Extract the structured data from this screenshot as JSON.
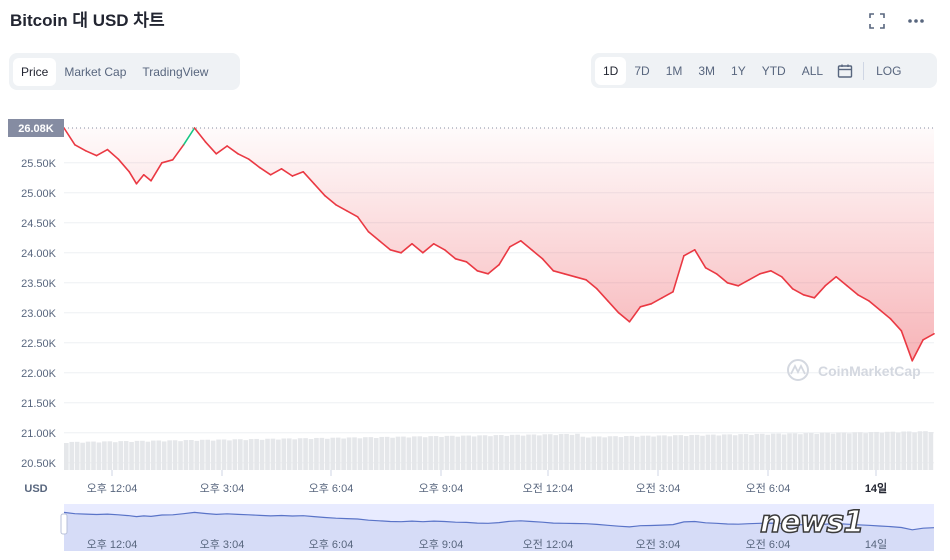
{
  "page": {
    "title": "Bitcoin 대 USD 차트",
    "expand_icon": "expand-icon",
    "more_icon": "more-icon"
  },
  "tabs_left": [
    {
      "label": "Price",
      "active": true
    },
    {
      "label": "Market Cap",
      "active": false
    },
    {
      "label": "TradingView",
      "active": false
    }
  ],
  "range_tabs": [
    {
      "label": "1D",
      "active": true
    },
    {
      "label": "7D",
      "active": false
    },
    {
      "label": "1M",
      "active": false
    },
    {
      "label": "3M",
      "active": false
    },
    {
      "label": "1Y",
      "active": false
    },
    {
      "label": "YTD",
      "active": false
    },
    {
      "label": "ALL",
      "active": false
    }
  ],
  "calendar_icon": "calendar-icon",
  "log_label": "LOG",
  "watermarks": {
    "coinmarketcap": "CoinMarketCap",
    "news": "news1"
  },
  "colors": {
    "line_down": "#ea3943",
    "line_up": "#16c784",
    "volume_bar": "#e5e7ea",
    "current_label_bg": "#858ca2",
    "navigator_fill": "#e8ebff",
    "navigator_line": "#5a74c8"
  },
  "chart_data": {
    "type": "line",
    "title": "Bitcoin 대 USD 차트",
    "currency_label": "USD",
    "current_value_label": "26.08K",
    "y_ticks": [
      "25.50K",
      "25.00K",
      "24.50K",
      "24.00K",
      "23.50K",
      "23.00K",
      "22.50K",
      "22.00K",
      "21.50K",
      "21.00K",
      "20.50K"
    ],
    "ylim": [
      20380,
      26180
    ],
    "x_ticks": [
      "오후 12:04",
      "오후 3:04",
      "오후 6:04",
      "오후 9:04",
      "오전 12:04",
      "오전 3:04",
      "오전 6:04",
      "14일"
    ],
    "navigator_ticks": [
      "오후 12:04",
      "오후 3:04",
      "오후 6:04",
      "오후 9:04",
      "오전 12:04",
      "오전 3:04",
      "오전 6:04",
      "14일"
    ],
    "grid": true,
    "series": [
      {
        "x": [
          0,
          0.3,
          0.6,
          0.9,
          1.2,
          1.5,
          1.8,
          2.0,
          2.2,
          2.4,
          2.7,
          3.0,
          3.3,
          3.6,
          3.9,
          4.2,
          4.5,
          4.8,
          5.1,
          5.4,
          5.7,
          6.0,
          6.3,
          6.6,
          6.9,
          7.2,
          7.5,
          7.8,
          8.1,
          8.4,
          8.7,
          9.0,
          9.3,
          9.6,
          9.9,
          10.2,
          10.5,
          10.8,
          11.1,
          11.4,
          11.7,
          12.0,
          12.3,
          12.6,
          12.9,
          13.2,
          13.5,
          13.8,
          14.1,
          14.4,
          14.7,
          15.0,
          15.3,
          15.6,
          15.9,
          16.2,
          16.5,
          16.8,
          17.1,
          17.4,
          17.7,
          18.0,
          18.3,
          18.6,
          18.9,
          19.2,
          19.5,
          19.8,
          20.1,
          20.4,
          20.7,
          21.0,
          21.3,
          21.6,
          21.9,
          22.2,
          22.5,
          22.8,
          23.1,
          23.4,
          23.7,
          24.0
        ],
        "values": [
          26080,
          25800,
          25700,
          25620,
          25720,
          25560,
          25350,
          25150,
          25300,
          25200,
          25500,
          25550,
          25800,
          26080,
          25850,
          25650,
          25780,
          25650,
          25560,
          25420,
          25300,
          25400,
          25280,
          25350,
          25150,
          24950,
          24800,
          24700,
          24600,
          24350,
          24200,
          24050,
          24000,
          24150,
          24000,
          24150,
          24050,
          23900,
          23850,
          23700,
          23650,
          23800,
          24100,
          24200,
          24050,
          23900,
          23700,
          23650,
          23600,
          23550,
          23400,
          23200,
          23000,
          22850,
          23100,
          23150,
          23250,
          23350,
          23950,
          24050,
          23750,
          23650,
          23500,
          23450,
          23550,
          23650,
          23700,
          23600,
          23400,
          23300,
          23250,
          23450,
          23600,
          23450,
          23300,
          23200,
          23050,
          22900,
          22700,
          22200,
          22550,
          22650
        ]
      }
    ]
  }
}
